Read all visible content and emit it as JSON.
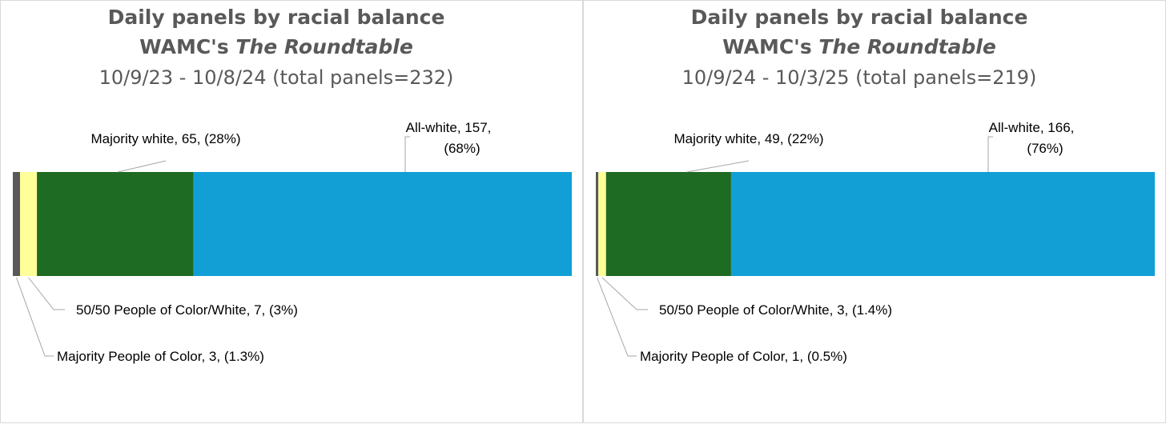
{
  "colors": {
    "majority_poc": "#595959",
    "fifty_fifty": "#ffff99",
    "majority_white": "#1e6b24",
    "all_white": "#129fd6",
    "title_text": "#595959",
    "leader_line": "#a6a6a6"
  },
  "chart_data": [
    {
      "type": "bar",
      "orientation": "horizontal-stacked-100",
      "title_line1": "Daily panels by racial balance",
      "title_line2_prefix": "WAMC's ",
      "title_line2_italic": "The Roundtable",
      "subtitle": "10/9/23 - 10/8/24 (total panels=232)",
      "total": 232,
      "series": [
        {
          "name": "Majority People of Color",
          "value": 3,
          "percent": 1.3,
          "label": "Majority People of Color, 3, (1.3%)",
          "color_key": "majority_poc"
        },
        {
          "name": "50/50 People of Color/White",
          "value": 7,
          "percent": 3,
          "label": "50/50 People of Color/White, 7, (3%)",
          "color_key": "fifty_fifty"
        },
        {
          "name": "Majority white",
          "value": 65,
          "percent": 28,
          "label": "Majority white, 65, (28%)",
          "color_key": "majority_white"
        },
        {
          "name": "All-white",
          "value": 157,
          "percent": 68,
          "label_line1": "All-white, 157,",
          "label_line2": "(68%)",
          "color_key": "all_white"
        }
      ]
    },
    {
      "type": "bar",
      "orientation": "horizontal-stacked-100",
      "title_line1": "Daily panels by racial balance",
      "title_line2_prefix": "WAMC's ",
      "title_line2_italic": "The Roundtable",
      "subtitle": "10/9/24 - 10/3/25 (total panels=219)",
      "total": 219,
      "series": [
        {
          "name": "Majority People of Color",
          "value": 1,
          "percent": 0.5,
          "label": "Majority People of Color, 1, (0.5%)",
          "color_key": "majority_poc"
        },
        {
          "name": "50/50 People of Color/White",
          "value": 3,
          "percent": 1.4,
          "label": "50/50 People of Color/White, 3, (1.4%)",
          "color_key": "fifty_fifty"
        },
        {
          "name": "Majority white",
          "value": 49,
          "percent": 22,
          "label": "Majority white, 49, (22%)",
          "color_key": "majority_white"
        },
        {
          "name": "All-white",
          "value": 166,
          "percent": 76,
          "label_line1": "All-white, 166,",
          "label_line2": "(76%)",
          "color_key": "all_white"
        }
      ]
    }
  ]
}
